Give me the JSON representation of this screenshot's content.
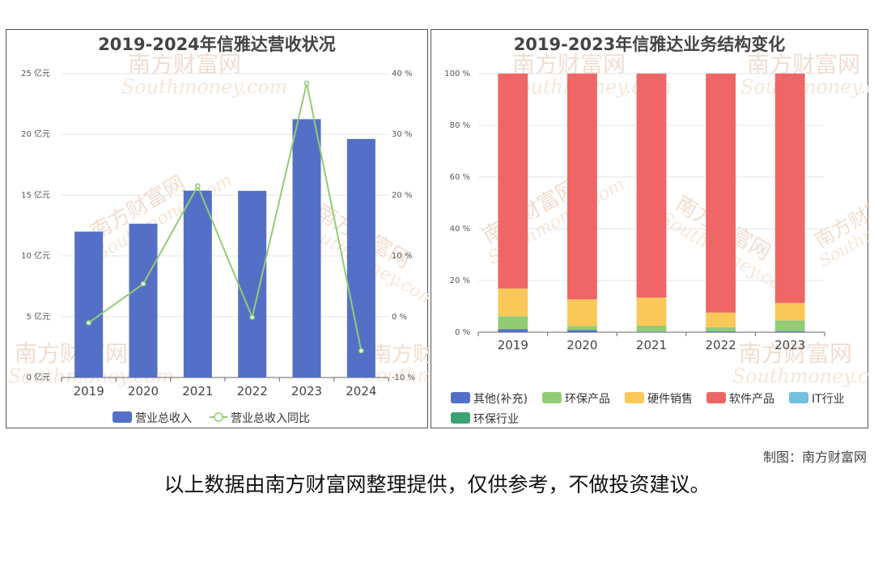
{
  "credit": "制图：南方财富网",
  "disclaimer": "以上数据由南方财富网整理提供，仅供参考，不做投资建议。",
  "watermark": {
    "cn": "南方财富网",
    "en": "Southmoney.com"
  },
  "chart_data": [
    {
      "type": "bar",
      "title": "2019-2024年信雅达营收状况",
      "categories": [
        "2019",
        "2020",
        "2021",
        "2022",
        "2023",
        "2024"
      ],
      "series": [
        {
          "name": "营业总收入",
          "type": "bar",
          "axis": "left",
          "color": "#5470c6",
          "values": [
            12.0,
            12.65,
            15.37,
            15.35,
            21.25,
            19.62
          ]
        },
        {
          "name": "营业总收入同比",
          "type": "line",
          "axis": "right",
          "color": "#91cc75",
          "values": [
            -1.0,
            5.4,
            21.5,
            -0.1,
            38.4,
            -5.6
          ]
        }
      ],
      "y_left": {
        "ticks": [
          "0 亿元",
          "5 亿元",
          "10 亿元",
          "15 亿元",
          "20 亿元",
          "25 亿元"
        ],
        "min": 0,
        "max": 25
      },
      "y_right": {
        "ticks": [
          "-10 %",
          "0 %",
          "10 %",
          "20 %",
          "30 %",
          "40 %"
        ],
        "min": -10,
        "max": 40
      },
      "legend_position": "bottom",
      "grid": true
    },
    {
      "type": "bar",
      "stacked": true,
      "title": "2019-2023年信雅达业务结构变化",
      "categories": [
        "2019",
        "2020",
        "2021",
        "2022",
        "2023"
      ],
      "series": [
        {
          "name": "其他(补充)",
          "color": "#5470c6",
          "values": [
            1.2,
            0.8,
            0.2,
            0.3,
            0.4
          ]
        },
        {
          "name": "环保产品",
          "color": "#91cc75",
          "values": [
            5.0,
            1.6,
            2.3,
            1.6,
            4.2
          ]
        },
        {
          "name": "硬件销售",
          "color": "#fac858",
          "values": [
            10.7,
            10.3,
            10.9,
            5.7,
            6.7
          ]
        },
        {
          "name": "软件产品",
          "color": "#ee6666",
          "values": [
            83.1,
            87.3,
            86.6,
            92.4,
            88.7
          ]
        },
        {
          "name": "IT行业",
          "color": "#73c0de",
          "values": [
            0,
            0,
            0,
            0,
            0
          ]
        },
        {
          "name": "环保行业",
          "color": "#3ba272",
          "values": [
            0,
            0,
            0,
            0,
            0
          ]
        }
      ],
      "y": {
        "ticks": [
          "0 %",
          "20 %",
          "40 %",
          "60 %",
          "80 %",
          "100 %"
        ],
        "min": 0,
        "max": 100
      },
      "legend_position": "bottom",
      "grid": true
    }
  ]
}
